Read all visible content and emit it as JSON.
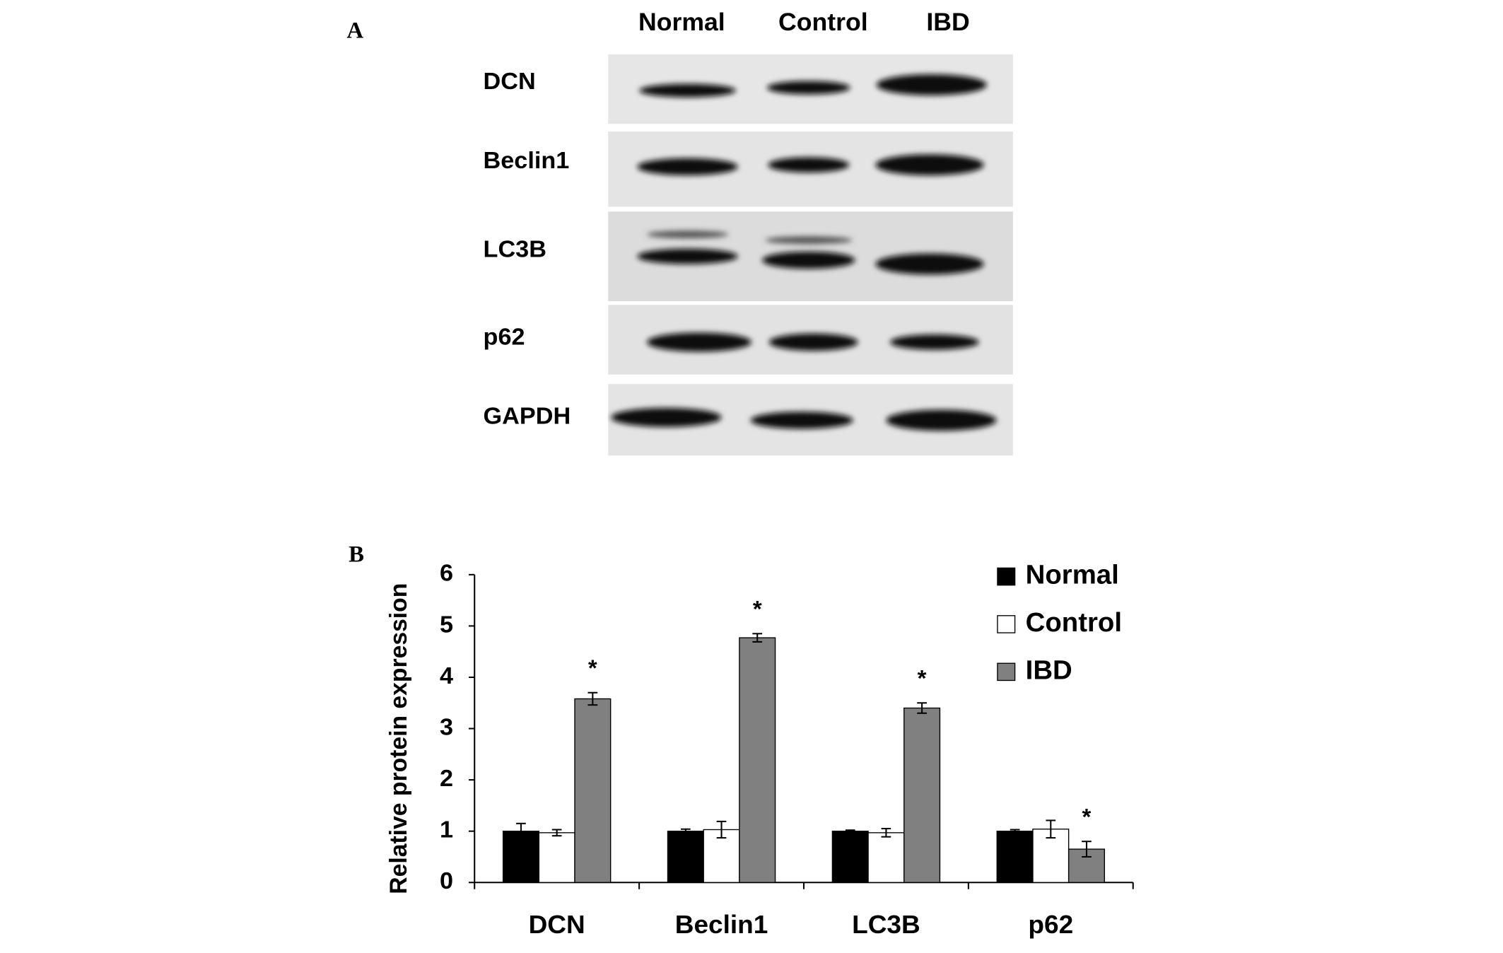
{
  "panel_a": {
    "label": "A",
    "lanes": [
      "Normal",
      "Control",
      "IBD"
    ],
    "proteins": [
      "DCN",
      "Beclin1",
      "LC3B",
      "p62",
      "GAPDH"
    ]
  },
  "chart_data": {
    "type": "bar",
    "panel_label": "B",
    "y_label": "Relative protein expression",
    "categories": [
      "DCN",
      "Beclin1",
      "LC3B",
      "p62"
    ],
    "series": [
      {
        "name": "Normal",
        "color": "#000000",
        "values": [
          1,
          1,
          1,
          1
        ],
        "errors": [
          0.15,
          0.04,
          0.02,
          0.03
        ]
      },
      {
        "name": "Control",
        "color": "#ffffff",
        "values": [
          0.97,
          1.03,
          0.97,
          1.04
        ],
        "errors": [
          0.06,
          0.16,
          0.08,
          0.17
        ]
      },
      {
        "name": "IBD",
        "color": "#808080",
        "values": [
          3.58,
          4.77,
          3.4,
          0.65
        ],
        "errors": [
          0.12,
          0.08,
          0.1,
          0.15
        ],
        "markers": [
          "*",
          "*",
          "*",
          "*"
        ]
      }
    ],
    "ylim": [
      0,
      6
    ],
    "yticks": [
      0,
      1,
      2,
      3,
      4,
      5,
      6
    ],
    "legend": "top-right"
  }
}
